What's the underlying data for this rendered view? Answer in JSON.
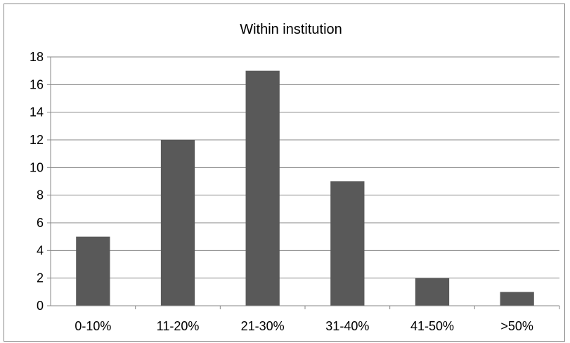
{
  "chart_data": {
    "type": "bar",
    "title": "Within institution",
    "xlabel": "",
    "ylabel": "",
    "categories": [
      "0-10%",
      "11-20%",
      "21-30%",
      "31-40%",
      "41-50%",
      ">50%"
    ],
    "values": [
      5,
      12,
      17,
      9,
      2,
      1
    ],
    "yticks": [
      "0",
      "2",
      "4",
      "6",
      "8",
      "10",
      "12",
      "14",
      "16",
      "18"
    ],
    "ylim": [
      0,
      18
    ],
    "grid": true,
    "legend": "none",
    "bar_color": "#595959",
    "gridline_color": "#878787"
  }
}
